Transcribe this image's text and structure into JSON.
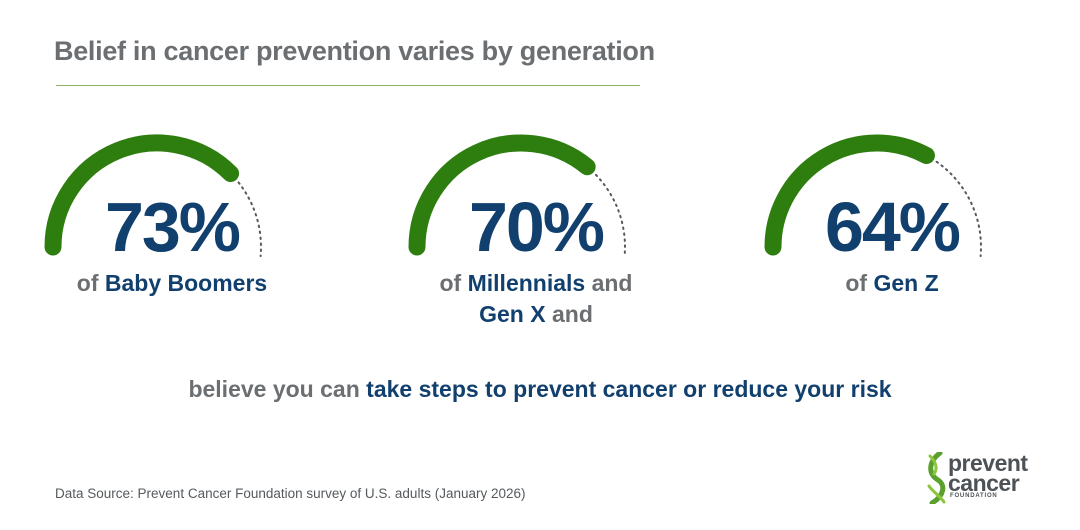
{
  "header": {
    "title": "Belief in cancer prevention varies by generation"
  },
  "colors": {
    "gauge_fill": "#2e7d0f",
    "gauge_track": "#555a5d",
    "value_text": "#12406e",
    "body_text": "#6b6f72",
    "rule": "#8fb06a"
  },
  "chart_data": {
    "type": "gauge",
    "unit": "%",
    "max": 100,
    "items": [
      {
        "value": 73,
        "label": "73%",
        "caption_lines": [
          {
            "prefix": "of ",
            "highlight": "Baby Boomers",
            "suffix": ""
          }
        ]
      },
      {
        "value": 70,
        "label": "70%",
        "caption_lines": [
          {
            "prefix": "of ",
            "highlight": "Millennials",
            "suffix": " and"
          },
          {
            "prefix": "",
            "highlight": "Gen X",
            "suffix": " and"
          }
        ]
      },
      {
        "value": 64,
        "label": "64%",
        "caption_lines": [
          {
            "prefix": "of ",
            "highlight": "Gen Z",
            "suffix": ""
          }
        ]
      }
    ]
  },
  "statement": {
    "prefix": "believe you can ",
    "highlight": "take steps to prevent cancer or reduce your risk"
  },
  "footer": {
    "source": "Data Source: Prevent Cancer Foundation survey of U.S. adults (January 2026)"
  },
  "logo": {
    "word1": "prevent",
    "word2": "cancer",
    "word3": "FOUNDATION",
    "icon": "dna-swoosh-icon"
  }
}
